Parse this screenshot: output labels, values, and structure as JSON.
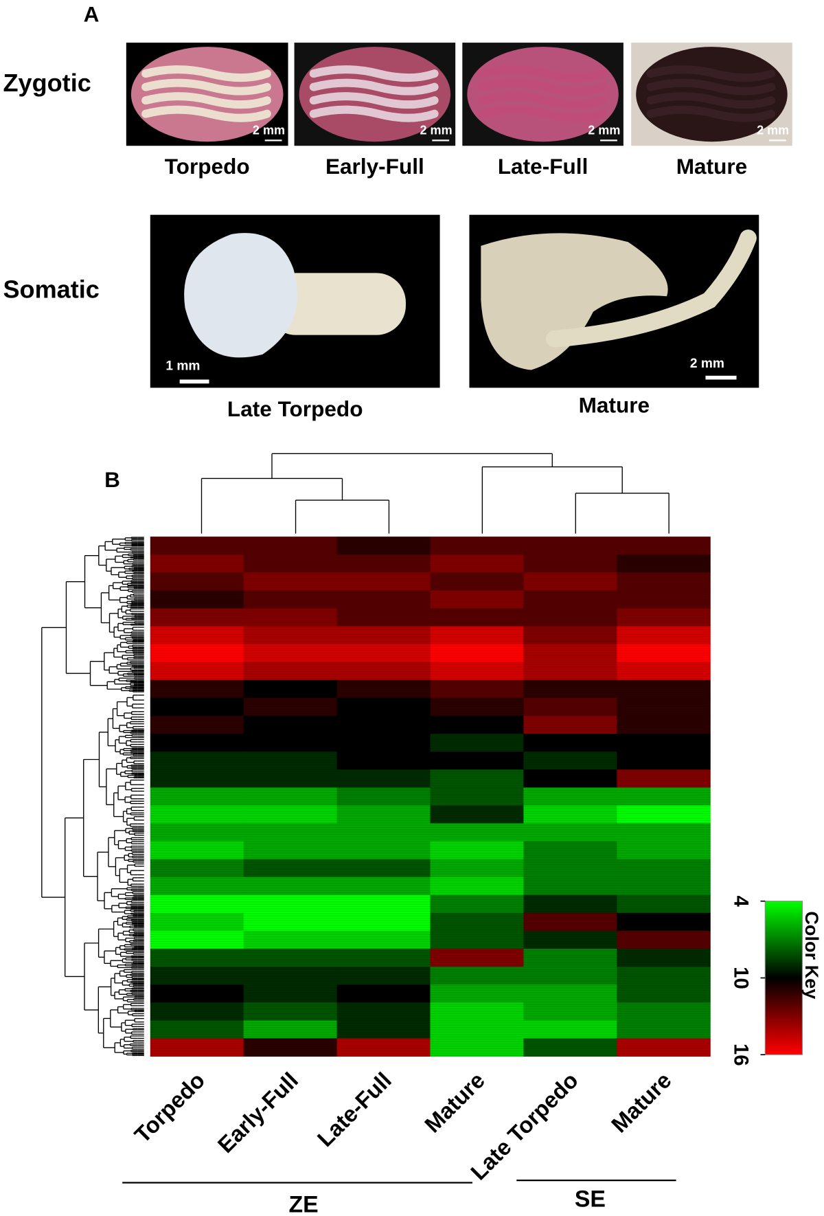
{
  "panel_a": {
    "label": "A",
    "rows": [
      {
        "label": "Zygotic",
        "images": [
          {
            "caption": "Torpedo",
            "scale_bar": "2 mm"
          },
          {
            "caption": "Early-Full",
            "scale_bar": "2 mm"
          },
          {
            "caption": "Late-Full",
            "scale_bar": "2 mm"
          },
          {
            "caption": "Mature",
            "scale_bar": "2 mm"
          }
        ]
      },
      {
        "label": "Somatic",
        "images": [
          {
            "caption": "Late Torpedo",
            "scale_bar": "1 mm"
          },
          {
            "caption": "Mature",
            "scale_bar": "2 mm"
          }
        ]
      }
    ]
  },
  "chart_data": {
    "type": "heatmap",
    "panel_label": "B",
    "columns": [
      "Torpedo",
      "Early-Full",
      "Late-Full",
      "Mature",
      "Late Torpedo",
      "Mature"
    ],
    "groups": [
      "ZE",
      "SE"
    ],
    "values": [
      [
        12,
        12,
        11,
        12,
        12,
        12
      ],
      [
        13,
        12,
        12,
        13,
        12,
        11
      ],
      [
        12,
        13,
        13,
        12,
        13,
        12
      ],
      [
        11,
        12,
        12,
        13,
        12,
        12
      ],
      [
        13,
        13,
        12,
        12,
        12,
        13
      ],
      [
        15,
        14,
        14,
        15,
        13,
        15
      ],
      [
        16,
        15,
        15,
        16,
        14,
        16
      ],
      [
        15,
        14,
        14,
        15,
        14,
        15
      ],
      [
        11,
        10,
        11,
        12,
        11,
        11
      ],
      [
        10,
        11,
        10,
        11,
        12,
        11
      ],
      [
        11,
        10,
        10,
        10,
        13,
        11
      ],
      [
        10,
        10,
        10,
        9,
        10,
        10
      ],
      [
        9,
        9,
        10,
        10,
        9,
        10
      ],
      [
        9,
        9,
        9,
        8,
        10,
        13
      ],
      [
        6,
        6,
        7,
        8,
        6,
        6
      ],
      [
        5,
        5,
        6,
        9,
        5,
        4
      ],
      [
        6,
        6,
        6,
        6,
        6,
        6
      ],
      [
        5,
        6,
        6,
        5,
        7,
        6
      ],
      [
        7,
        8,
        8,
        6,
        7,
        7
      ],
      [
        6,
        6,
        6,
        5,
        7,
        7
      ],
      [
        4,
        4,
        4,
        7,
        9,
        8
      ],
      [
        5,
        4,
        4,
        8,
        12,
        10
      ],
      [
        4,
        5,
        5,
        8,
        9,
        12
      ],
      [
        8,
        8,
        8,
        13,
        7,
        9
      ],
      [
        9,
        9,
        9,
        7,
        7,
        8
      ],
      [
        10,
        9,
        10,
        6,
        6,
        8
      ],
      [
        9,
        8,
        9,
        5,
        6,
        7
      ],
      [
        8,
        6,
        9,
        5,
        5,
        7
      ],
      [
        14,
        11,
        14,
        5,
        8,
        14
      ]
    ],
    "color_key": {
      "title": "Color Key",
      "lim": [
        4,
        16
      ],
      "ticks": [
        4,
        10,
        16
      ],
      "colors": [
        "#00ff00",
        "#000000",
        "#ff0000"
      ]
    }
  }
}
